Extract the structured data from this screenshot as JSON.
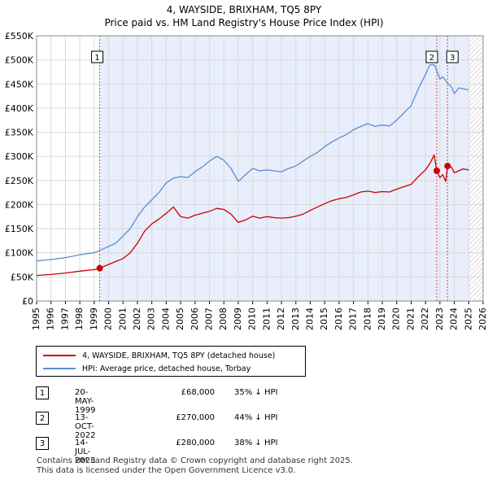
{
  "title": "4, WAYSIDE, BRIXHAM, TQ5 8PY",
  "subtitle": "Price paid vs. HM Land Registry's House Price Index (HPI)",
  "colors": {
    "property": "#cc0000",
    "hpi": "#5b8fcf",
    "shade": "#e8eefb",
    "future_hatch": "#d8d8d8",
    "marker_line": "#dd4444"
  },
  "legend": {
    "property_label": "4, WAYSIDE, BRIXHAM, TQ5 8PY (detached house)",
    "hpi_label": "HPI: Average price, detached house, Torbay"
  },
  "transactions": [
    {
      "num": "1",
      "date": "20-MAY-1999",
      "price": "£68,000",
      "hpi": "35% ↓ HPI"
    },
    {
      "num": "2",
      "date": "13-OCT-2022",
      "price": "£270,000",
      "hpi": "44% ↓ HPI"
    },
    {
      "num": "3",
      "date": "14-JUL-2023",
      "price": "£280,000",
      "hpi": "38% ↓ HPI"
    }
  ],
  "footer": {
    "line1": "Contains HM Land Registry data © Crown copyright and database right 2025.",
    "line2": "This data is licensed under the Open Government Licence v3.0."
  },
  "chart_data": {
    "type": "line",
    "title": "4, WAYSIDE, BRIXHAM, TQ5 8PY",
    "subtitle": "Price paid vs. HM Land Registry's House Price Index (HPI)",
    "xlabel": "",
    "ylabel": "",
    "xlim": [
      1995,
      2026
    ],
    "ylim": [
      0,
      550000
    ],
    "y_ticks": [
      0,
      50000,
      100000,
      150000,
      200000,
      250000,
      300000,
      350000,
      400000,
      450000,
      500000,
      550000
    ],
    "y_tick_labels": [
      "£0",
      "£50K",
      "£100K",
      "£150K",
      "£200K",
      "£250K",
      "£300K",
      "£350K",
      "£400K",
      "£450K",
      "£500K",
      "£550K"
    ],
    "x_ticks": [
      1995,
      1996,
      1997,
      1998,
      1999,
      2000,
      2001,
      2002,
      2003,
      2004,
      2005,
      2006,
      2007,
      2008,
      2009,
      2010,
      2011,
      2012,
      2013,
      2014,
      2015,
      2016,
      2017,
      2018,
      2019,
      2020,
      2021,
      2022,
      2023,
      2024,
      2025,
      2026
    ],
    "x_tick_labels": [
      "1995",
      "1996",
      "1997",
      "1998",
      "1999",
      "2000",
      "2001",
      "2002",
      "2003",
      "2004",
      "2005",
      "2006",
      "2007",
      "2008",
      "2009",
      "2010",
      "2011",
      "2012",
      "2013",
      "2014",
      "2015",
      "2016",
      "2017",
      "2018",
      "2019",
      "2020",
      "2021",
      "2022",
      "2023",
      "2024",
      "2025",
      "2026"
    ],
    "grid": true,
    "shaded_period": [
      1999.38,
      2025.0
    ],
    "future_from": 2025.0,
    "series": [
      {
        "name": "4, WAYSIDE, BRIXHAM, TQ5 8PY (detached house)",
        "color": "#cc0000",
        "x": [
          1995.0,
          1996.0,
          1997.0,
          1998.0,
          1999.0,
          1999.38,
          2000.0,
          2000.5,
          2001.0,
          2001.5,
          2002.0,
          2002.5,
          2003.0,
          2003.5,
          2004.0,
          2004.5,
          2005.0,
          2005.5,
          2006.0,
          2006.5,
          2007.0,
          2007.5,
          2008.0,
          2008.5,
          2009.0,
          2009.5,
          2010.0,
          2010.5,
          2011.0,
          2011.5,
          2012.0,
          2012.5,
          2013.0,
          2013.5,
          2014.0,
          2014.5,
          2015.0,
          2015.5,
          2016.0,
          2016.5,
          2017.0,
          2017.5,
          2018.0,
          2018.5,
          2019.0,
          2019.5,
          2020.0,
          2020.5,
          2021.0,
          2021.5,
          2022.0,
          2022.3,
          2022.6,
          2022.78,
          2023.0,
          2023.2,
          2023.4,
          2023.53,
          2023.8,
          2024.0,
          2024.3,
          2024.6,
          2025.0
        ],
        "y": [
          53000,
          55000,
          58000,
          62000,
          65000,
          68000,
          76000,
          82000,
          88000,
          100000,
          120000,
          145000,
          160000,
          170000,
          182000,
          195000,
          175000,
          172000,
          178000,
          182000,
          186000,
          192000,
          190000,
          180000,
          163000,
          168000,
          176000,
          172000,
          175000,
          173000,
          172000,
          173000,
          176000,
          180000,
          188000,
          195000,
          202000,
          208000,
          212000,
          215000,
          220000,
          226000,
          228000,
          225000,
          227000,
          226000,
          232000,
          237000,
          242000,
          258000,
          272000,
          285000,
          303000,
          270000,
          256000,
          262000,
          248000,
          280000,
          278000,
          266000,
          270000,
          274000,
          272000
        ]
      },
      {
        "name": "HPI: Average price, detached house, Torbay",
        "color": "#5b8fcf",
        "x": [
          1995.0,
          1996.0,
          1997.0,
          1998.0,
          1999.0,
          1999.38,
          2000.0,
          2000.5,
          2001.0,
          2001.5,
          2002.0,
          2002.5,
          2003.0,
          2003.5,
          2004.0,
          2004.5,
          2005.0,
          2005.5,
          2006.0,
          2006.5,
          2007.0,
          2007.5,
          2008.0,
          2008.5,
          2009.0,
          2009.5,
          2010.0,
          2010.5,
          2011.0,
          2011.5,
          2012.0,
          2012.5,
          2013.0,
          2013.5,
          2014.0,
          2014.5,
          2015.0,
          2015.5,
          2016.0,
          2016.5,
          2017.0,
          2017.5,
          2018.0,
          2018.5,
          2019.0,
          2019.5,
          2020.0,
          2020.5,
          2021.0,
          2021.5,
          2022.0,
          2022.3,
          2022.6,
          2022.78,
          2023.0,
          2023.2,
          2023.53,
          2023.8,
          2024.0,
          2024.3,
          2024.6,
          2025.0
        ],
        "y": [
          83000,
          86000,
          90000,
          96000,
          100000,
          105000,
          113000,
          120000,
          135000,
          150000,
          175000,
          195000,
          210000,
          225000,
          245000,
          255000,
          258000,
          256000,
          268000,
          278000,
          290000,
          300000,
          292000,
          275000,
          248000,
          262000,
          275000,
          270000,
          272000,
          270000,
          268000,
          275000,
          280000,
          290000,
          300000,
          308000,
          320000,
          330000,
          338000,
          345000,
          355000,
          362000,
          368000,
          362000,
          365000,
          363000,
          375000,
          390000,
          405000,
          440000,
          470000,
          490000,
          490000,
          478000,
          460000,
          465000,
          452000,
          444000,
          430000,
          442000,
          440000,
          438000
        ]
      }
    ],
    "markers": [
      {
        "label": "1",
        "x": 1999.38,
        "y": 68000
      },
      {
        "label": "2",
        "x": 2022.78,
        "y": 270000
      },
      {
        "label": "3",
        "x": 2023.53,
        "y": 280000
      }
    ]
  }
}
